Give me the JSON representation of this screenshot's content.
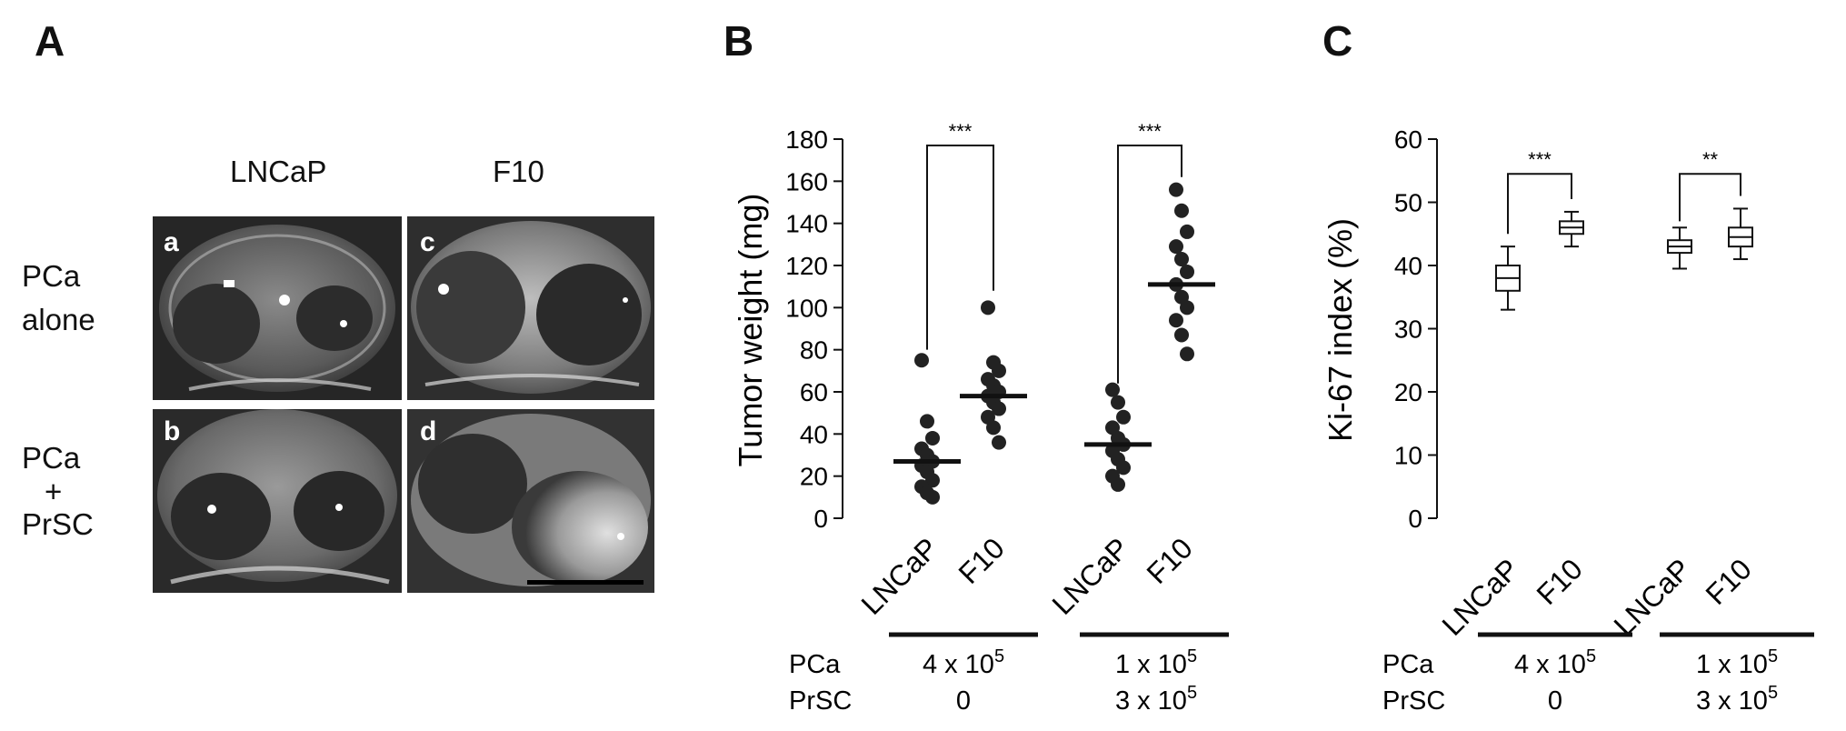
{
  "panel_a": {
    "letter": "A",
    "columns": [
      "LNCaP",
      "F10"
    ],
    "rows": [
      {
        "line1": "PCa",
        "line2": "alone",
        "line3": ""
      },
      {
        "line1": "PCa",
        "line2": "+",
        "line3": "PrSC"
      }
    ],
    "sublabels": [
      "a",
      "b",
      "c",
      "d"
    ]
  },
  "panel_b": {
    "letter": "B",
    "chart_data": {
      "type": "scatter",
      "title": "",
      "ylabel": "Tumor weight (mg)",
      "ylim": [
        0,
        180
      ],
      "yticks": [
        0,
        20,
        40,
        60,
        80,
        100,
        120,
        140,
        160,
        180
      ],
      "groups": [
        {
          "label": "LNCaP",
          "mean": 27,
          "points": [
            75,
            46,
            38,
            33,
            30,
            27,
            25,
            22,
            18,
            15,
            12,
            10
          ]
        },
        {
          "label": "F10",
          "mean": 58,
          "points": [
            100,
            74,
            70,
            66,
            63,
            60,
            58,
            55,
            52,
            48,
            43,
            36
          ]
        },
        {
          "label": "LNCaP",
          "mean": 35,
          "points": [
            61,
            55,
            48,
            43,
            38,
            35,
            32,
            28,
            24,
            20,
            16
          ]
        },
        {
          "label": "F10",
          "mean": 111,
          "points": [
            156,
            146,
            136,
            129,
            123,
            117,
            111,
            105,
            100,
            94,
            87,
            78
          ]
        }
      ],
      "significance": [
        "***",
        "***"
      ],
      "conditions": {
        "row_labels": [
          "PCa",
          "PrSC"
        ],
        "pca": [
          "4 x 10",
          "1 x 10"
        ],
        "prsc": [
          "0",
          "3 x 10"
        ],
        "exponent": "5"
      }
    }
  },
  "panel_c": {
    "letter": "C",
    "chart_data": {
      "type": "box",
      "title": "",
      "ylabel": "Ki-67 index (%)",
      "ylim": [
        0,
        60
      ],
      "yticks": [
        0,
        10,
        20,
        30,
        40,
        50,
        60
      ],
      "boxes": [
        {
          "label": "LNCaP",
          "min": 33,
          "q1": 36,
          "median": 38,
          "q3": 40,
          "max": 43
        },
        {
          "label": "F10",
          "min": 43,
          "q1": 45,
          "median": 46,
          "q3": 47,
          "max": 48.5
        },
        {
          "label": "LNCaP",
          "min": 39.5,
          "q1": 42,
          "median": 43,
          "q3": 44,
          "max": 46
        },
        {
          "label": "F10",
          "min": 41,
          "q1": 43,
          "median": 44.5,
          "q3": 46,
          "max": 49
        }
      ],
      "significance": [
        "***",
        "**"
      ],
      "conditions": {
        "row_labels": [
          "PCa",
          "PrSC"
        ],
        "pca": [
          "4 x 10",
          "1 x 10"
        ],
        "prsc": [
          "0",
          "3 x 10"
        ],
        "exponent": "5"
      }
    }
  }
}
